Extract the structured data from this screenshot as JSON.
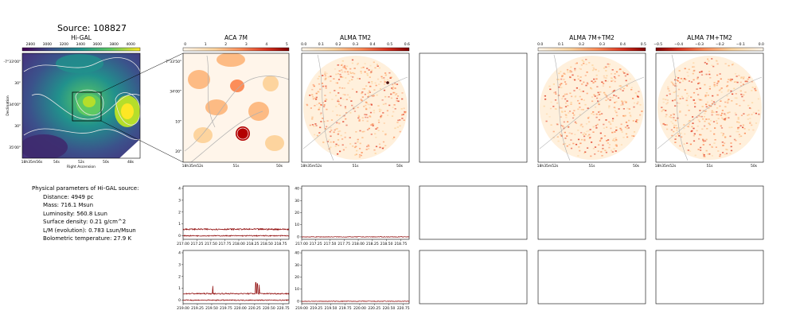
{
  "source_title": "Source: 108827",
  "params_title": "Physical parameters of Hi-GAL source:",
  "params": [
    "Distance: 4949 pc",
    "Mass: 716.1 Msun",
    "Luminosity: 560.8 Lsun",
    "Surface density: 0.21 g/cm^2",
    "L/M (evolution): 0.783 Lsun/Msun",
    "Bolometric temperature: 27.9 K"
  ],
  "colors": {
    "line": "#8b0000",
    "frame": "#000000",
    "contour": "#b0b0b0"
  },
  "chart_data": [
    {
      "type": "heatmap",
      "title": "Hi-GAL",
      "xlabel": "Right Ascension",
      "ylabel": "Declination",
      "colorbar_ticks": [
        "2800",
        "3000",
        "3200",
        "3400",
        "3600",
        "3800",
        "4000"
      ],
      "colormap": "viridis",
      "x_ticks": [
        "18h35m56s",
        "54s",
        "52s",
        "50s",
        "48s"
      ],
      "y_ticks": [
        "-7°33'00\"",
        "30\"",
        "34'00\"",
        "30\"",
        "35'00\""
      ]
    },
    {
      "type": "heatmap",
      "title": "ACA 7M",
      "colorbar_ticks": [
        "0",
        "1",
        "2",
        "3",
        "4",
        "5"
      ],
      "colormap": "OrRd",
      "x_ticks": [
        "18h35m52s",
        "51s",
        "50s"
      ],
      "y_ticks": [
        "-7°33'50\"",
        "34'00\"",
        "10\"",
        "20\""
      ]
    },
    {
      "type": "heatmap",
      "title": "ALMA TM2",
      "colorbar_ticks": [
        "0.0",
        "0.1",
        "0.2",
        "0.3",
        "0.4",
        "0.5",
        "0.6"
      ],
      "colormap": "OrRd",
      "x_ticks": [
        "18h35m52s",
        "51s",
        "50s"
      ]
    },
    {
      "type": "heatmap",
      "title": "ALMA 7M+TM2",
      "colorbar_ticks": [
        "0.0",
        "0.1",
        "0.2",
        "0.3",
        "0.4",
        "0.5"
      ],
      "colormap": "OrRd",
      "x_ticks": [
        "18h35m52s",
        "51s",
        "50s"
      ]
    },
    {
      "type": "heatmap",
      "title": "ALMA 7M+TM2",
      "colorbar_ticks": [
        "−0.5",
        "−0.4",
        "−0.3",
        "−0.2",
        "−0.1",
        "0.0"
      ],
      "colormap": "OrRd_r",
      "x_ticks": [
        "18h35m52s",
        "51s",
        "50s"
      ]
    },
    {
      "type": "line",
      "title": "",
      "x_ticks": [
        "217.00",
        "217.25",
        "217.50",
        "217.75",
        "218.00",
        "218.25",
        "218.50",
        "218.75"
      ],
      "y_ticks": [
        "0",
        "1",
        "2",
        "3",
        "4"
      ],
      "xlim": [
        217.0,
        218.9
      ],
      "ylim": [
        -0.3,
        4.2
      ],
      "series": [
        {
          "baseline": 0.55,
          "noise": 0.12,
          "spikes": []
        },
        {
          "baseline": 0.0,
          "noise": 0.08,
          "spikes": []
        }
      ]
    },
    {
      "type": "line",
      "title": "",
      "x_ticks": [
        "217.00",
        "217.25",
        "217.50",
        "217.75",
        "218.00",
        "218.25",
        "218.50",
        "218.75"
      ],
      "y_ticks": [
        "0",
        "10",
        "20",
        "30",
        "40"
      ],
      "xlim": [
        217.0,
        218.9
      ],
      "ylim": [
        -2,
        42
      ],
      "series": [
        {
          "baseline": 0.0,
          "noise": 0.5,
          "spikes": []
        }
      ]
    },
    {
      "type": "line",
      "title": "",
      "x_ticks": [
        "219.00",
        "219.25",
        "219.50",
        "219.75",
        "220.00",
        "220.25",
        "220.50",
        "220.75"
      ],
      "y_ticks": [
        "0",
        "1",
        "2",
        "3",
        "4"
      ],
      "xlim": [
        219.0,
        220.85
      ],
      "ylim": [
        -0.3,
        4.2
      ],
      "series": [
        {
          "baseline": 0.55,
          "noise": 0.1,
          "spikes": [
            [
              219.52,
              1.2
            ],
            [
              220.27,
              1.5
            ],
            [
              220.3,
              1.4
            ],
            [
              220.33,
              1.3
            ]
          ]
        },
        {
          "baseline": 0.0,
          "noise": 0.08,
          "spikes": []
        }
      ]
    },
    {
      "type": "line",
      "title": "",
      "x_ticks": [
        "219.00",
        "219.25",
        "219.50",
        "219.75",
        "220.00",
        "220.25",
        "220.50",
        "220.75"
      ],
      "y_ticks": [
        "0",
        "10",
        "20",
        "30",
        "40"
      ],
      "xlim": [
        219.0,
        220.85
      ],
      "ylim": [
        -2,
        42
      ],
      "series": [
        {
          "baseline": 0.0,
          "noise": 0.5,
          "spikes": []
        }
      ]
    }
  ]
}
